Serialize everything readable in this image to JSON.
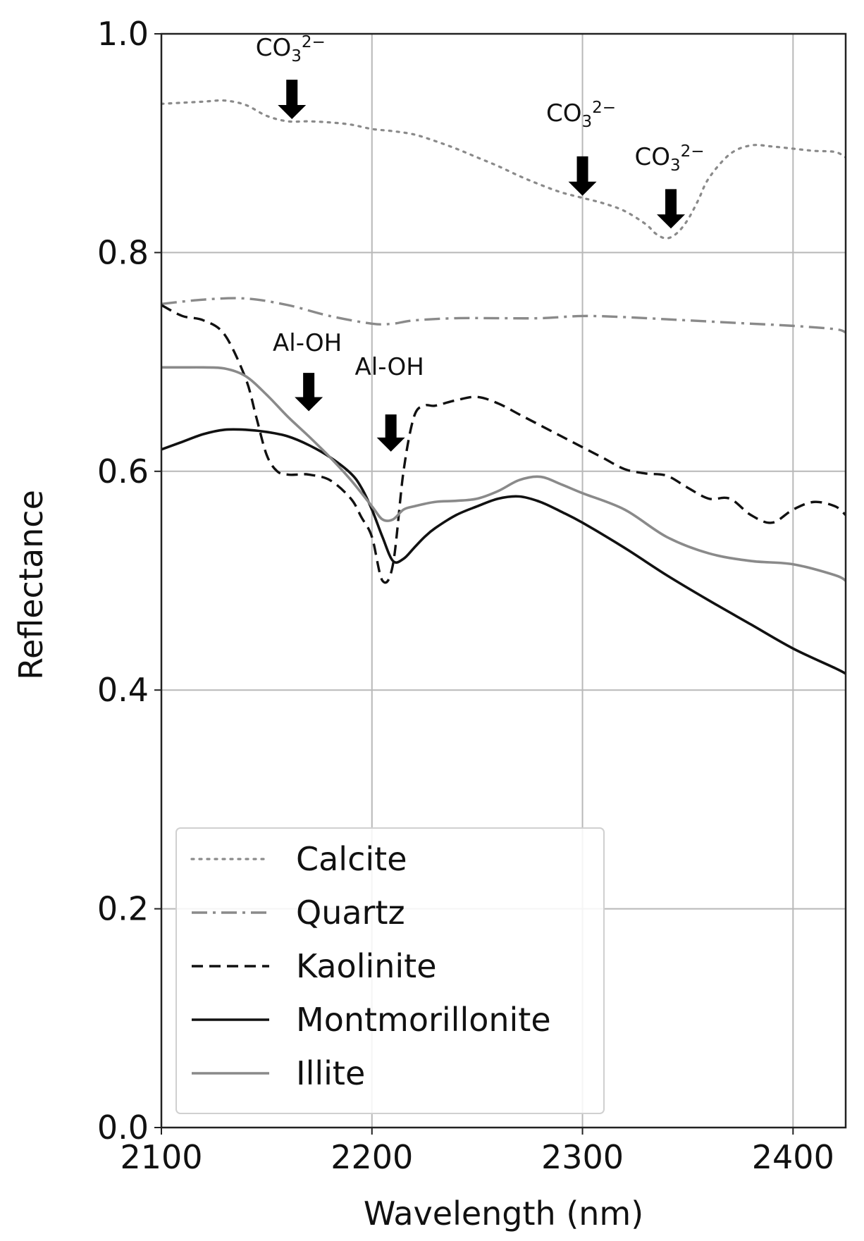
{
  "chart_data": {
    "type": "line",
    "title": "",
    "xlabel": "Wavelength (nm)",
    "ylabel": "Reflectance",
    "xlim": [
      2100,
      2425
    ],
    "ylim": [
      0.0,
      1.0
    ],
    "xticks": [
      2100,
      2200,
      2300,
      2400
    ],
    "xtick_labels": [
      "2100",
      "2200",
      "2300",
      "2400"
    ],
    "yticks": [
      0.0,
      0.2,
      0.4,
      0.6,
      0.8,
      1.0
    ],
    "ytick_labels": [
      "0.0",
      "0.2",
      "0.4",
      "0.6",
      "0.8",
      "1.0"
    ],
    "grid": true,
    "legend_position": "lower-left",
    "series": [
      {
        "name": "Calcite",
        "style": "dotted",
        "color": "#8a8a8a",
        "x": [
          2100,
          2110,
          2120,
          2130,
          2140,
          2150,
          2160,
          2170,
          2180,
          2190,
          2200,
          2210,
          2220,
          2230,
          2240,
          2250,
          2260,
          2270,
          2280,
          2290,
          2300,
          2310,
          2320,
          2330,
          2335,
          2340,
          2345,
          2350,
          2355,
          2360,
          2370,
          2380,
          2390,
          2400,
          2410,
          2420,
          2425
        ],
        "y": [
          0.936,
          0.937,
          0.938,
          0.939,
          0.935,
          0.925,
          0.92,
          0.92,
          0.919,
          0.917,
          0.913,
          0.911,
          0.908,
          0.902,
          0.895,
          0.887,
          0.879,
          0.87,
          0.862,
          0.855,
          0.85,
          0.845,
          0.838,
          0.826,
          0.817,
          0.813,
          0.818,
          0.83,
          0.848,
          0.868,
          0.89,
          0.898,
          0.897,
          0.895,
          0.893,
          0.892,
          0.887
        ]
      },
      {
        "name": "Quartz",
        "style": "dashdot",
        "color": "#8a8a8a",
        "x": [
          2100,
          2120,
          2140,
          2160,
          2180,
          2200,
          2210,
          2220,
          2240,
          2260,
          2280,
          2300,
          2320,
          2340,
          2360,
          2380,
          2400,
          2420,
          2425
        ],
        "y": [
          0.753,
          0.757,
          0.758,
          0.752,
          0.742,
          0.735,
          0.735,
          0.738,
          0.74,
          0.74,
          0.74,
          0.742,
          0.741,
          0.739,
          0.737,
          0.735,
          0.733,
          0.73,
          0.727
        ]
      },
      {
        "name": "Kaolinite",
        "style": "dashed",
        "color": "#111111",
        "x": [
          2100,
          2110,
          2120,
          2130,
          2140,
          2145,
          2150,
          2155,
          2160,
          2165,
          2170,
          2180,
          2190,
          2195,
          2200,
          2205,
          2210,
          2215,
          2220,
          2225,
          2230,
          2240,
          2250,
          2260,
          2270,
          2280,
          2290,
          2300,
          2310,
          2320,
          2330,
          2340,
          2350,
          2360,
          2370,
          2380,
          2390,
          2400,
          2410,
          2420,
          2425
        ],
        "y": [
          0.752,
          0.742,
          0.738,
          0.725,
          0.685,
          0.65,
          0.615,
          0.6,
          0.597,
          0.597,
          0.597,
          0.592,
          0.575,
          0.558,
          0.54,
          0.5,
          0.515,
          0.6,
          0.65,
          0.66,
          0.66,
          0.665,
          0.668,
          0.662,
          0.652,
          0.642,
          0.632,
          0.622,
          0.612,
          0.602,
          0.598,
          0.596,
          0.585,
          0.575,
          0.575,
          0.56,
          0.553,
          0.565,
          0.572,
          0.568,
          0.56
        ]
      },
      {
        "name": "Montmorillonite",
        "style": "solid",
        "color": "#111111",
        "x": [
          2100,
          2110,
          2120,
          2130,
          2140,
          2150,
          2160,
          2170,
          2180,
          2190,
          2195,
          2200,
          2205,
          2210,
          2215,
          2220,
          2225,
          2230,
          2240,
          2250,
          2260,
          2270,
          2280,
          2290,
          2300,
          2320,
          2340,
          2360,
          2380,
          2400,
          2420,
          2425
        ],
        "y": [
          0.62,
          0.627,
          0.634,
          0.638,
          0.638,
          0.636,
          0.632,
          0.624,
          0.613,
          0.598,
          0.585,
          0.565,
          0.54,
          0.518,
          0.52,
          0.53,
          0.54,
          0.548,
          0.56,
          0.568,
          0.575,
          0.577,
          0.572,
          0.563,
          0.553,
          0.53,
          0.505,
          0.482,
          0.46,
          0.438,
          0.42,
          0.415
        ]
      },
      {
        "name": "Illite",
        "style": "solid",
        "color": "#8a8a8a",
        "x": [
          2100,
          2110,
          2120,
          2130,
          2140,
          2150,
          2160,
          2170,
          2180,
          2190,
          2200,
          2205,
          2210,
          2215,
          2220,
          2230,
          2240,
          2250,
          2260,
          2270,
          2280,
          2290,
          2300,
          2320,
          2340,
          2360,
          2380,
          2400,
          2420,
          2425
        ],
        "y": [
          0.695,
          0.695,
          0.695,
          0.694,
          0.687,
          0.67,
          0.65,
          0.632,
          0.613,
          0.592,
          0.568,
          0.556,
          0.556,
          0.565,
          0.568,
          0.572,
          0.573,
          0.575,
          0.582,
          0.592,
          0.595,
          0.588,
          0.58,
          0.565,
          0.54,
          0.525,
          0.518,
          0.515,
          0.505,
          0.5
        ]
      }
    ],
    "annotations": [
      {
        "label": "CO",
        "sub": "3",
        "sup": "2−",
        "x": 2162,
        "arrow_tip_y": 0.922,
        "arrow_base_y": 0.958,
        "text_y": 0.98
      },
      {
        "label": "CO",
        "sub": "3",
        "sup": "2−",
        "x": 2300,
        "arrow_tip_y": 0.852,
        "arrow_base_y": 0.888,
        "text_y": 0.92
      },
      {
        "label": "CO",
        "sub": "3",
        "sup": "2−",
        "x": 2342,
        "arrow_tip_y": 0.822,
        "arrow_base_y": 0.858,
        "text_y": 0.88
      },
      {
        "label": "Al-OH",
        "x": 2170,
        "arrow_tip_y": 0.655,
        "arrow_base_y": 0.69,
        "text_y": 0.71
      },
      {
        "label": "Al-OH",
        "x": 2209,
        "arrow_tip_y": 0.618,
        "arrow_base_y": 0.652,
        "text_y": 0.688
      }
    ]
  }
}
